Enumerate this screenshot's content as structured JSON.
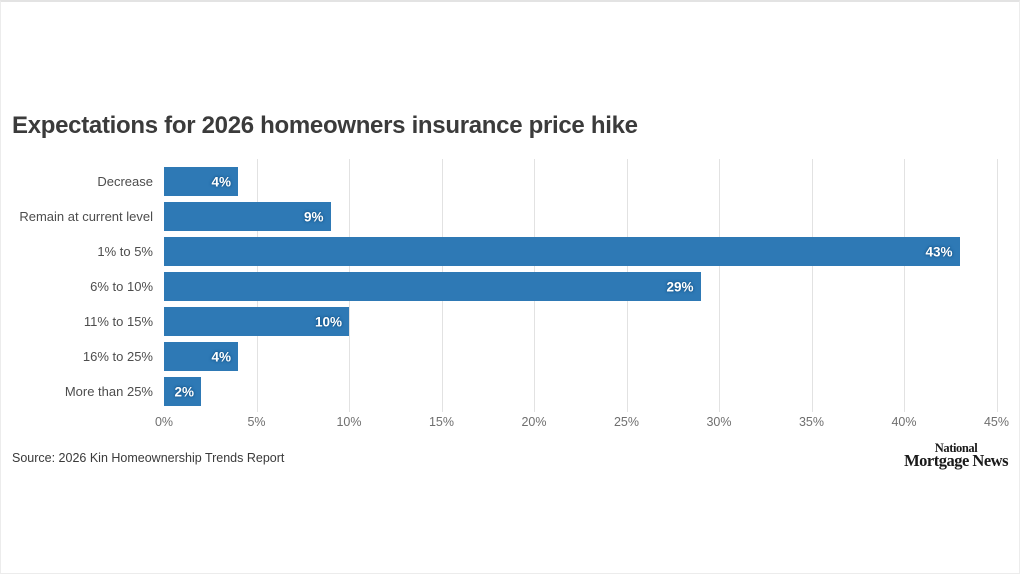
{
  "page": {
    "title": "Expectations for 2026 homeowners insurance price hike",
    "source": "Source: 2026 Kin Homeownership Trends Report",
    "logo": {
      "line1": "National",
      "line2": "Mortgage News"
    }
  },
  "chart_data": {
    "type": "bar",
    "orientation": "horizontal",
    "title": "Expectations for 2026 homeowners insurance price hike",
    "categories": [
      "Decrease",
      "Remain at current level",
      "1% to 5%",
      "6% to 10%",
      "11% to 15%",
      "16% to 25%",
      "More than 25%"
    ],
    "values": [
      4,
      9,
      43,
      29,
      10,
      4,
      2
    ],
    "value_labels": [
      "4%",
      "9%",
      "43%",
      "29%",
      "10%",
      "4%",
      "2%"
    ],
    "x_tick_values": [
      0,
      5,
      10,
      15,
      20,
      25,
      30,
      35,
      40,
      45
    ],
    "x_tick_labels": [
      "0%",
      "5%",
      "10%",
      "15%",
      "20%",
      "25%",
      "30%",
      "35%",
      "40%",
      "45%"
    ],
    "xlim": [
      0,
      45
    ],
    "grid": true,
    "legend": false,
    "bar_color": "#2e79b5",
    "value_label_color": "#ffffff",
    "gridline_color": "#e2e2e2"
  }
}
